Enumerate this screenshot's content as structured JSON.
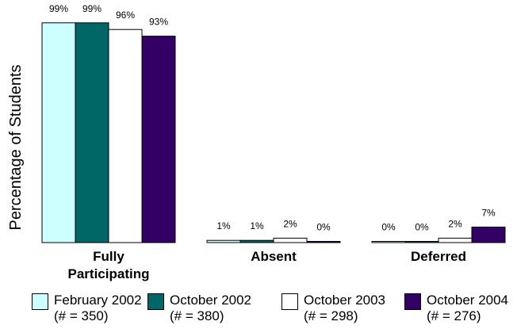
{
  "chart_data": {
    "type": "bar",
    "ylabel": "Percentage of Students",
    "ylim": [
      0,
      100
    ],
    "grid": false,
    "legend_position": "bottom",
    "categories": [
      "Fully Participating",
      "Absent",
      "Deferred"
    ],
    "category_lines": [
      [
        "Fully",
        "Participating"
      ],
      [
        "Absent"
      ],
      [
        "Deferred"
      ]
    ],
    "series": [
      {
        "name": "February 2002",
        "n_label": "(# = 350)",
        "color": "#ccffff",
        "values": [
          99,
          1,
          0
        ],
        "labels": [
          "99%",
          "1%",
          "0%"
        ]
      },
      {
        "name": "October 2002",
        "n_label": "(# = 380)",
        "color": "#006666",
        "values": [
          99,
          1,
          0
        ],
        "labels": [
          "99%",
          "1%",
          "0%"
        ]
      },
      {
        "name": "October 2003",
        "n_label": "(# = 298)",
        "color": "#ffffff",
        "values": [
          96,
          2,
          2
        ],
        "labels": [
          "96%",
          "2%",
          "2%"
        ]
      },
      {
        "name": "October 2004",
        "n_label": "(# = 276)",
        "color": "#330066",
        "values": [
          93,
          0,
          7
        ],
        "labels": [
          "93%",
          "0%",
          "7%"
        ]
      }
    ]
  }
}
